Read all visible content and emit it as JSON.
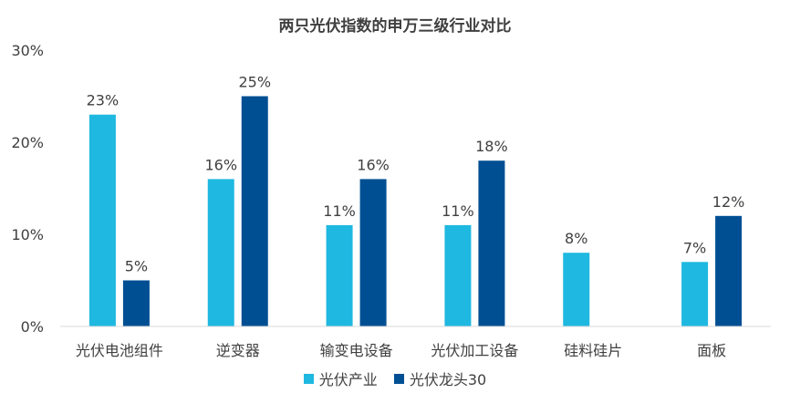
{
  "chart_data": {
    "type": "bar",
    "title": "两只光伏指数的申万三级行业对比",
    "categories": [
      "光伏电池组件",
      "逆变器",
      "输变电设备",
      "光伏加工设备",
      "硅料硅片",
      "面板"
    ],
    "series": [
      {
        "name": "光伏产业",
        "color": "#1FB8E0",
        "values": [
          23,
          16,
          11,
          11,
          8,
          7
        ],
        "labels": [
          "23%",
          "16%",
          "11%",
          "11%",
          "8%",
          "7%"
        ]
      },
      {
        "name": "光伏龙头30",
        "color": "#004F93",
        "values": [
          5,
          25,
          16,
          18,
          null,
          12
        ],
        "labels": [
          "5%",
          "25%",
          "16%",
          "18%",
          "",
          "12%"
        ]
      }
    ],
    "ylim": [
      0,
      30
    ],
    "yticks": [
      0,
      10,
      20,
      30
    ],
    "ytick_labels": [
      "0%",
      "10%",
      "20%",
      "30%"
    ],
    "xlabel": "",
    "ylabel": "",
    "grid": false,
    "legend_position": "bottom"
  }
}
